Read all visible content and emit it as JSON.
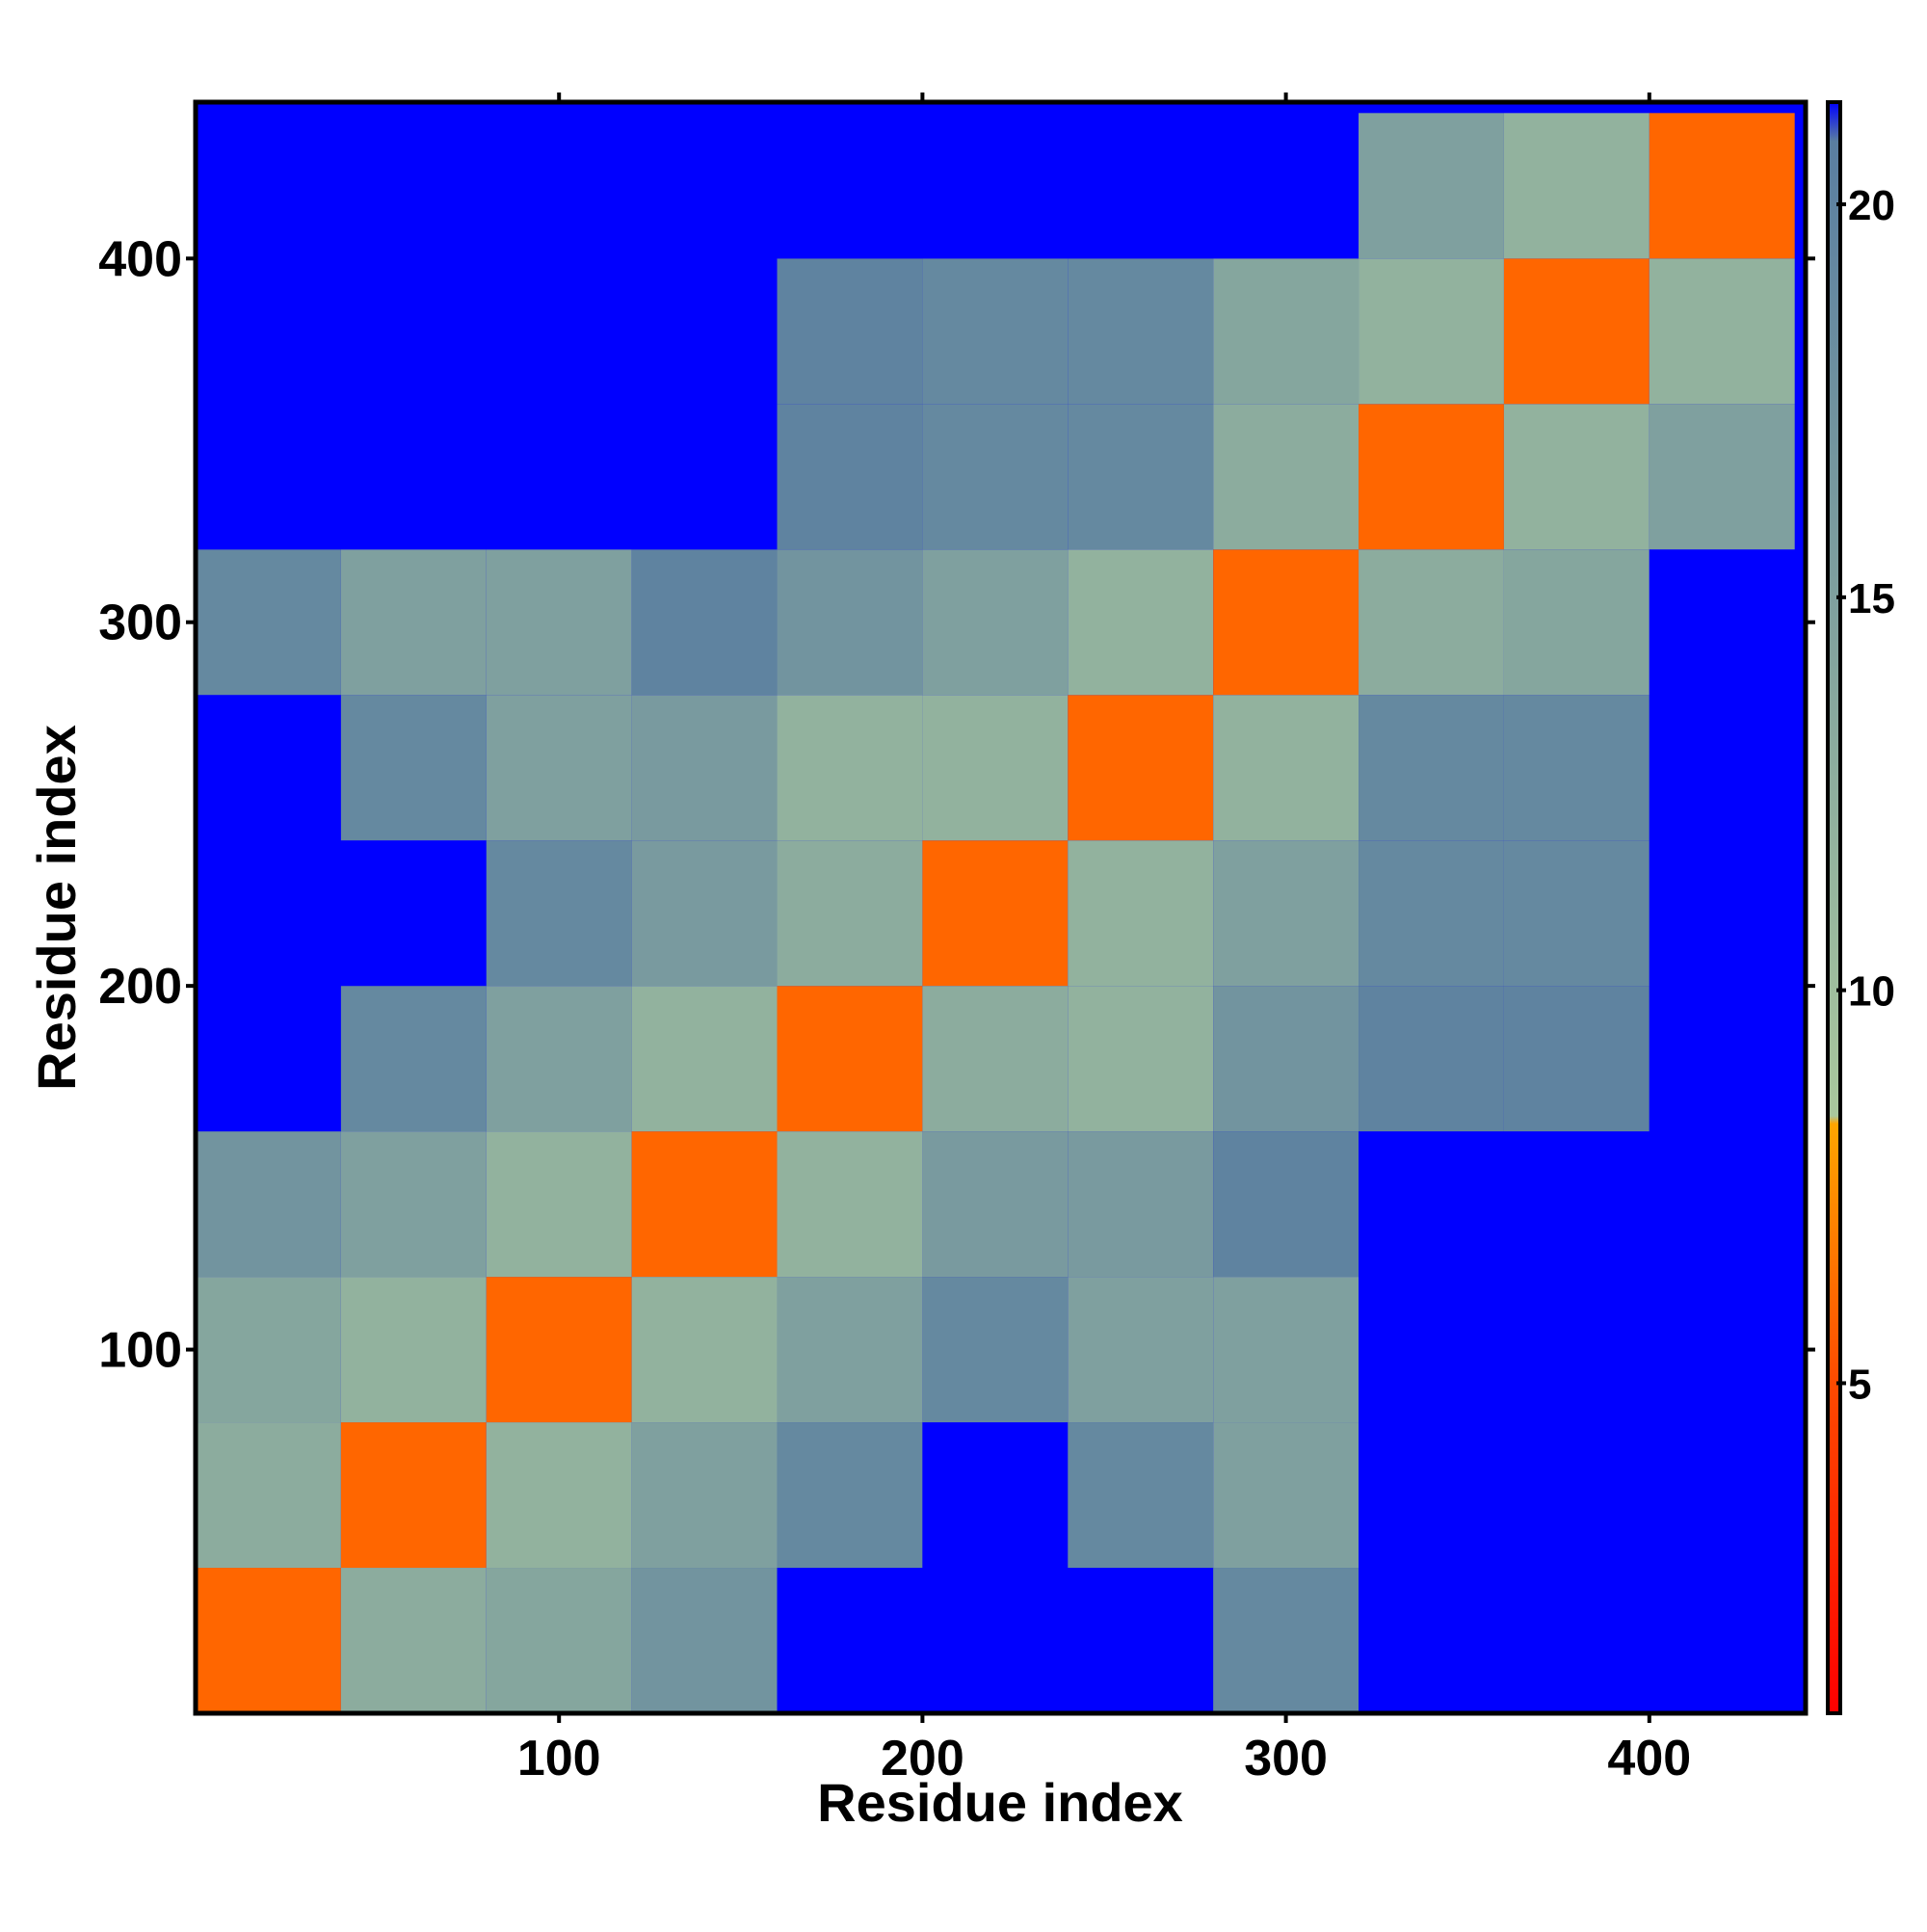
{
  "chart_data": {
    "type": "heatmap",
    "x_label": "Residue index",
    "y_label": "Residue index",
    "x_bins": [
      0,
      40,
      80,
      120,
      160,
      200,
      240,
      280,
      320,
      360,
      400,
      440
    ],
    "y_bins": [
      0,
      40,
      80,
      120,
      160,
      200,
      240,
      280,
      320,
      360,
      400,
      440
    ],
    "values": [
      [
        6,
        13,
        14,
        17,
        22,
        22,
        22,
        19,
        22,
        22,
        22
      ],
      [
        13,
        6,
        12,
        15,
        19,
        22,
        19,
        15,
        22,
        22,
        22
      ],
      [
        14,
        12,
        6,
        12,
        15,
        19,
        15,
        15,
        22,
        22,
        22
      ],
      [
        17,
        15,
        12,
        6,
        12,
        16,
        16,
        20,
        22,
        22,
        22
      ],
      [
        22,
        19,
        15,
        12,
        6,
        13,
        12,
        17,
        20,
        20,
        22
      ],
      [
        22,
        22,
        19,
        16,
        13,
        6,
        12,
        15,
        19,
        19,
        22
      ],
      [
        22,
        19,
        15,
        16,
        12,
        12,
        6,
        12,
        19,
        19,
        22
      ],
      [
        19,
        15,
        15,
        20,
        17,
        15,
        12,
        6,
        13,
        14,
        22
      ],
      [
        22,
        22,
        22,
        22,
        20,
        19,
        19,
        13,
        6,
        12,
        15
      ],
      [
        22,
        22,
        22,
        22,
        20,
        19,
        19,
        14,
        12,
        6,
        12
      ],
      [
        22,
        22,
        22,
        22,
        22,
        22,
        22,
        22,
        15,
        12,
        6
      ]
    ],
    "xlim": [
      0,
      443
    ],
    "ylim": [
      0,
      443
    ],
    "xticks": [
      100,
      200,
      300,
      400
    ],
    "yticks": [
      100,
      200,
      300,
      400
    ],
    "colorbar_lim": [
      0.8,
      21.3
    ],
    "colorbar_ticks": [
      5,
      10,
      15,
      20
    ],
    "colorscale": [
      {
        "value": 0.8,
        "color": "#ff0000"
      },
      {
        "value": 5,
        "color": "#ff4a00"
      },
      {
        "value": 8.3,
        "color": "#ffa500"
      },
      {
        "value": 8.4,
        "color": "#a9c79d"
      },
      {
        "value": 20.8,
        "color": "#5a7ea0"
      },
      {
        "value": 21.3,
        "color": "#0000ff"
      }
    ]
  }
}
